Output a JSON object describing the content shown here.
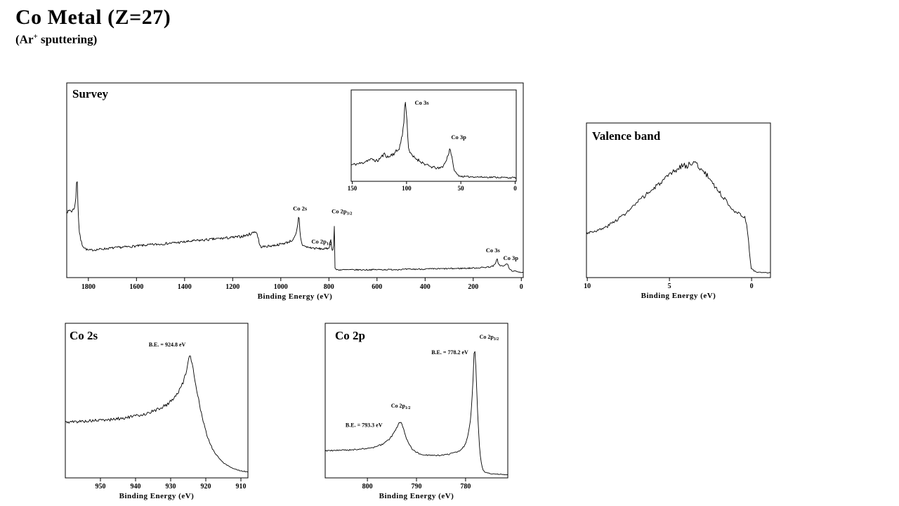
{
  "header": {
    "title": "Co Metal (Z=27)",
    "subtitle_pre": "(Ar",
    "subtitle_sup": "+",
    "subtitle_post": " sputtering)"
  },
  "chart_data": [
    {
      "id": "survey",
      "type": "line",
      "title": "Survey",
      "xlabel": "Binding Energy (eV)",
      "ylabel": "",
      "x_range": [
        1890,
        -8
      ],
      "x_ticks": [
        1800,
        1600,
        1400,
        1200,
        1000,
        800,
        600,
        400,
        200,
        0
      ],
      "grid": false,
      "noise": 0.01,
      "annotations": [
        {
          "text": "Co 2s",
          "x": 920,
          "y": 0.345
        },
        {
          "text": "Co 2p",
          "sub": "1/2",
          "x": 830,
          "y": 0.175
        },
        {
          "text": "Co 2p",
          "sub": "3/2",
          "x": 746,
          "y": 0.33
        },
        {
          "text": "Co 3s",
          "x": 118,
          "y": 0.13
        },
        {
          "text": "Co 3p",
          "x": 44,
          "y": 0.09
        }
      ],
      "points": [
        [
          1890,
          0.345
        ],
        [
          1883,
          0.335
        ],
        [
          1877,
          0.35
        ],
        [
          1871,
          0.34
        ],
        [
          1865,
          0.345
        ],
        [
          1859,
          0.36
        ],
        [
          1855,
          0.375
        ],
        [
          1852,
          0.41
        ],
        [
          1849,
          0.5
        ],
        [
          1848,
          0.55
        ],
        [
          1846,
          0.49
        ],
        [
          1844,
          0.4
        ],
        [
          1841,
          0.3
        ],
        [
          1838,
          0.24
        ],
        [
          1833,
          0.2
        ],
        [
          1826,
          0.17
        ],
        [
          1818,
          0.155
        ],
        [
          1808,
          0.145
        ],
        [
          1800,
          0.14
        ],
        [
          1780,
          0.142
        ],
        [
          1750,
          0.146
        ],
        [
          1700,
          0.152
        ],
        [
          1650,
          0.157
        ],
        [
          1600,
          0.162
        ],
        [
          1550,
          0.168
        ],
        [
          1500,
          0.172
        ],
        [
          1450,
          0.178
        ],
        [
          1400,
          0.183
        ],
        [
          1350,
          0.19
        ],
        [
          1300,
          0.195
        ],
        [
          1260,
          0.2
        ],
        [
          1230,
          0.203
        ],
        [
          1200,
          0.206
        ],
        [
          1170,
          0.21
        ],
        [
          1140,
          0.218
        ],
        [
          1120,
          0.228
        ],
        [
          1108,
          0.238
        ],
        [
          1100,
          0.23
        ],
        [
          1094,
          0.205
        ],
        [
          1088,
          0.165
        ],
        [
          1082,
          0.158
        ],
        [
          1060,
          0.16
        ],
        [
          1030,
          0.165
        ],
        [
          1000,
          0.172
        ],
        [
          975,
          0.18
        ],
        [
          955,
          0.19
        ],
        [
          945,
          0.2
        ],
        [
          938,
          0.218
        ],
        [
          933,
          0.242
        ],
        [
          929,
          0.275
        ],
        [
          926.5,
          0.305
        ],
        [
          925,
          0.325
        ],
        [
          923.5,
          0.3
        ],
        [
          921,
          0.25
        ],
        [
          918,
          0.21
        ],
        [
          914,
          0.18
        ],
        [
          908,
          0.165
        ],
        [
          895,
          0.158
        ],
        [
          875,
          0.153
        ],
        [
          855,
          0.15
        ],
        [
          835,
          0.148
        ],
        [
          815,
          0.147
        ],
        [
          805,
          0.15
        ],
        [
          800,
          0.155
        ],
        [
          797,
          0.165
        ],
        [
          795,
          0.18
        ],
        [
          793.5,
          0.205
        ],
        [
          793,
          0.21
        ],
        [
          792,
          0.19
        ],
        [
          790,
          0.165
        ],
        [
          787,
          0.148
        ],
        [
          784,
          0.14
        ],
        [
          782,
          0.145
        ],
        [
          780.5,
          0.16
        ],
        [
          779.3,
          0.2
        ],
        [
          778.5,
          0.26
        ],
        [
          778,
          0.315
        ],
        [
          777.5,
          0.27
        ],
        [
          777,
          0.19
        ],
        [
          776.3,
          0.1
        ],
        [
          775.5,
          0.055
        ],
        [
          774,
          0.045
        ],
        [
          772,
          0.042
        ],
        [
          760,
          0.04
        ],
        [
          730,
          0.04
        ],
        [
          700,
          0.04
        ],
        [
          650,
          0.04
        ],
        [
          600,
          0.041
        ],
        [
          550,
          0.041
        ],
        [
          500,
          0.042
        ],
        [
          450,
          0.043
        ],
        [
          400,
          0.044
        ],
        [
          350,
          0.045
        ],
        [
          300,
          0.046
        ],
        [
          260,
          0.047
        ],
        [
          230,
          0.048
        ],
        [
          200,
          0.049
        ],
        [
          170,
          0.051
        ],
        [
          150,
          0.053
        ],
        [
          135,
          0.055
        ],
        [
          120,
          0.058
        ],
        [
          112,
          0.064
        ],
        [
          106,
          0.075
        ],
        [
          102,
          0.092
        ],
        [
          100,
          0.097
        ],
        [
          98,
          0.085
        ],
        [
          95,
          0.072
        ],
        [
          91,
          0.065
        ],
        [
          87,
          0.062
        ],
        [
          82,
          0.06
        ],
        [
          76,
          0.059
        ],
        [
          70,
          0.06
        ],
        [
          66,
          0.065
        ],
        [
          62,
          0.072
        ],
        [
          60,
          0.074
        ],
        [
          58,
          0.07
        ],
        [
          55,
          0.06
        ],
        [
          52,
          0.05
        ],
        [
          48,
          0.043
        ],
        [
          43,
          0.038
        ],
        [
          38,
          0.035
        ],
        [
          30,
          0.033
        ],
        [
          20,
          0.031
        ],
        [
          10,
          0.03
        ],
        [
          2,
          0.028
        ],
        [
          -8,
          0.027
        ]
      ]
    },
    {
      "id": "survey-inset",
      "type": "line",
      "title": "",
      "xlabel": "",
      "ylabel": "",
      "x_range": [
        151,
        -1
      ],
      "x_ticks": [
        150,
        100,
        50,
        0
      ],
      "grid": false,
      "noise": 0.024,
      "annotations": [
        {
          "text": "Co 3s",
          "x": 86,
          "y": 0.84
        },
        {
          "text": "Co 3p",
          "x": 52,
          "y": 0.46
        }
      ],
      "points": [
        [
          151,
          0.18
        ],
        [
          146,
          0.19
        ],
        [
          141,
          0.2
        ],
        [
          136,
          0.23
        ],
        [
          131,
          0.24
        ],
        [
          127,
          0.22
        ],
        [
          123,
          0.27
        ],
        [
          120,
          0.3
        ],
        [
          117,
          0.26
        ],
        [
          114,
          0.29
        ],
        [
          111,
          0.31
        ],
        [
          108,
          0.34
        ],
        [
          106,
          0.39
        ],
        [
          104,
          0.5
        ],
        [
          102.5,
          0.65
        ],
        [
          101,
          0.91
        ],
        [
          100,
          0.75
        ],
        [
          99,
          0.5
        ],
        [
          98,
          0.36
        ],
        [
          96,
          0.29
        ],
        [
          93,
          0.26
        ],
        [
          90,
          0.24
        ],
        [
          86,
          0.21
        ],
        [
          82,
          0.18
        ],
        [
          78,
          0.16
        ],
        [
          74,
          0.15
        ],
        [
          70,
          0.14
        ],
        [
          67,
          0.16
        ],
        [
          64,
          0.21
        ],
        [
          62,
          0.28
        ],
        [
          60,
          0.37
        ],
        [
          58.5,
          0.28
        ],
        [
          57,
          0.16
        ],
        [
          55,
          0.1
        ],
        [
          53,
          0.07
        ],
        [
          50,
          0.055
        ],
        [
          45,
          0.05
        ],
        [
          40,
          0.05
        ],
        [
          35,
          0.048
        ],
        [
          30,
          0.046
        ],
        [
          25,
          0.045
        ],
        [
          20,
          0.045
        ],
        [
          15,
          0.043
        ],
        [
          10,
          0.042
        ],
        [
          5,
          0.04
        ],
        [
          -1,
          0.04
        ]
      ]
    },
    {
      "id": "valence",
      "type": "line",
      "title": "Valence band",
      "xlabel": "Binding Energy (eV)",
      "ylabel": "",
      "x_range": [
        10.05,
        -1.15
      ],
      "x_ticks": [
        10,
        5,
        0
      ],
      "grid": false,
      "noise": 0.01,
      "annotations": [],
      "points": [
        [
          10.05,
          0.29
        ],
        [
          9.6,
          0.3
        ],
        [
          9.2,
          0.31
        ],
        [
          8.8,
          0.33
        ],
        [
          8.4,
          0.36
        ],
        [
          8,
          0.39
        ],
        [
          7.6,
          0.42
        ],
        [
          7.2,
          0.46
        ],
        [
          6.8,
          0.5
        ],
        [
          6.4,
          0.54
        ],
        [
          6,
          0.57
        ],
        [
          5.6,
          0.61
        ],
        [
          5.2,
          0.64
        ],
        [
          4.8,
          0.68
        ],
        [
          4.5,
          0.7
        ],
        [
          4.2,
          0.73
        ],
        [
          3.9,
          0.72
        ],
        [
          3.6,
          0.75
        ],
        [
          3.3,
          0.73
        ],
        [
          3,
          0.69
        ],
        [
          2.7,
          0.66
        ],
        [
          2.4,
          0.62
        ],
        [
          2.1,
          0.57
        ],
        [
          1.8,
          0.53
        ],
        [
          1.5,
          0.49
        ],
        [
          1.2,
          0.45
        ],
        [
          0.9,
          0.42
        ],
        [
          0.6,
          0.4
        ],
        [
          0.4,
          0.39
        ],
        [
          0.3,
          0.35
        ],
        [
          0.2,
          0.25
        ],
        [
          0.1,
          0.13
        ],
        [
          0.02,
          0.06
        ],
        [
          -0.2,
          0.04
        ],
        [
          -0.6,
          0.032
        ],
        [
          -1.15,
          0.03
        ]
      ]
    },
    {
      "id": "co2s",
      "type": "line",
      "title": "Co 2s",
      "xlabel": "Binding Energy (eV)",
      "ylabel": "",
      "x_range": [
        960,
        908
      ],
      "x_ticks": [
        950,
        940,
        930,
        920,
        910
      ],
      "grid": false,
      "noise": 0.009,
      "annotations": [
        {
          "text": "B.E. = 924.8 eV",
          "x": 931,
          "y": 0.85
        }
      ],
      "points": [
        [
          960,
          0.36
        ],
        [
          956,
          0.365
        ],
        [
          952,
          0.37
        ],
        [
          948,
          0.375
        ],
        [
          944,
          0.385
        ],
        [
          940,
          0.4
        ],
        [
          937,
          0.415
        ],
        [
          934,
          0.44
        ],
        [
          931,
          0.475
        ],
        [
          929,
          0.52
        ],
        [
          927.5,
          0.565
        ],
        [
          926.3,
          0.63
        ],
        [
          925.5,
          0.7
        ],
        [
          925,
          0.76
        ],
        [
          924.8,
          0.79
        ],
        [
          924.4,
          0.775
        ],
        [
          924,
          0.74
        ],
        [
          923.5,
          0.69
        ],
        [
          923,
          0.63
        ],
        [
          922.5,
          0.565
        ],
        [
          922,
          0.5
        ],
        [
          921.5,
          0.445
        ],
        [
          921,
          0.39
        ],
        [
          920.5,
          0.345
        ],
        [
          920,
          0.3
        ],
        [
          919.5,
          0.265
        ],
        [
          919,
          0.235
        ],
        [
          918.5,
          0.21
        ],
        [
          918,
          0.185
        ],
        [
          917.5,
          0.165
        ],
        [
          917,
          0.15
        ],
        [
          916,
          0.12
        ],
        [
          915,
          0.1
        ],
        [
          914,
          0.085
        ],
        [
          913,
          0.07
        ],
        [
          912,
          0.06
        ],
        [
          911,
          0.052
        ],
        [
          910,
          0.046
        ],
        [
          909,
          0.042
        ],
        [
          908,
          0.04
        ]
      ]
    },
    {
      "id": "co2p",
      "type": "line",
      "title": "Co 2p",
      "xlabel": "Binding Energy (eV)",
      "ylabel": "",
      "x_range": [
        808.6,
        771.4
      ],
      "x_ticks": [
        800,
        790,
        780
      ],
      "grid": false,
      "noise": 0.007,
      "annotations": [
        {
          "text": "B.E. = 793.3 eV",
          "x": 800.7,
          "y": 0.33
        },
        {
          "text": "Co 2p",
          "sub": "1/2",
          "x": 793.2,
          "y": 0.455
        },
        {
          "text": "B.E. = 778.2 eV",
          "x": 783.2,
          "y": 0.8
        },
        {
          "text": "Co 2p",
          "sub": "3/2",
          "x": 775.2,
          "y": 0.9
        }
      ],
      "points": [
        [
          808.6,
          0.175
        ],
        [
          806,
          0.178
        ],
        [
          804,
          0.18
        ],
        [
          802,
          0.185
        ],
        [
          800,
          0.19
        ],
        [
          798.5,
          0.198
        ],
        [
          797.5,
          0.21
        ],
        [
          796.5,
          0.225
        ],
        [
          795.5,
          0.25
        ],
        [
          794.7,
          0.285
        ],
        [
          794,
          0.325
        ],
        [
          793.6,
          0.35
        ],
        [
          793.3,
          0.365
        ],
        [
          793,
          0.35
        ],
        [
          792.6,
          0.315
        ],
        [
          792.2,
          0.27
        ],
        [
          791.8,
          0.235
        ],
        [
          791.3,
          0.205
        ],
        [
          790.8,
          0.185
        ],
        [
          790.2,
          0.17
        ],
        [
          789.5,
          0.158
        ],
        [
          788.5,
          0.15
        ],
        [
          787.5,
          0.146
        ],
        [
          786.5,
          0.144
        ],
        [
          785.5,
          0.145
        ],
        [
          784.5,
          0.148
        ],
        [
          783.5,
          0.153
        ],
        [
          782.5,
          0.16
        ],
        [
          781.5,
          0.17
        ],
        [
          780.8,
          0.185
        ],
        [
          780.2,
          0.21
        ],
        [
          779.7,
          0.25
        ],
        [
          779.3,
          0.31
        ],
        [
          779,
          0.38
        ],
        [
          778.7,
          0.5
        ],
        [
          778.45,
          0.66
        ],
        [
          778.2,
          0.86
        ],
        [
          778,
          0.8
        ],
        [
          777.8,
          0.62
        ],
        [
          777.5,
          0.4
        ],
        [
          777.2,
          0.22
        ],
        [
          776.9,
          0.11
        ],
        [
          776.5,
          0.055
        ],
        [
          776,
          0.035
        ],
        [
          775,
          0.028
        ],
        [
          774,
          0.025
        ],
        [
          772.5,
          0.022
        ],
        [
          771.4,
          0.02
        ]
      ]
    }
  ],
  "colors": {
    "line": "#000000",
    "background": "#ffffff",
    "text": "#000000"
  }
}
